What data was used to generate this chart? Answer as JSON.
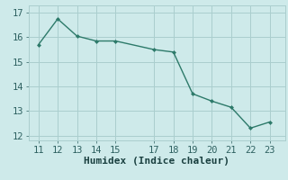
{
  "x": [
    11,
    12,
    13,
    14,
    15,
    17,
    18,
    19,
    20,
    21,
    22,
    23
  ],
  "y": [
    15.7,
    16.75,
    16.05,
    15.85,
    15.85,
    15.5,
    15.4,
    13.7,
    13.4,
    13.15,
    12.3,
    12.55
  ],
  "line_color": "#2d7a6a",
  "marker": "D",
  "marker_size": 2.5,
  "bg_color": "#ceeaea",
  "grid_color": "#aacece",
  "xlabel": "Humidex (Indice chaleur)",
  "xlabel_fontsize": 8,
  "tick_fontsize": 7.5,
  "ylim": [
    11.8,
    17.3
  ],
  "xlim": [
    10.5,
    23.8
  ],
  "yticks": [
    12,
    13,
    14,
    15,
    16,
    17
  ],
  "xticks": [
    11,
    12,
    13,
    14,
    15,
    17,
    18,
    19,
    20,
    21,
    22,
    23
  ],
  "tick_color": "#2d6060",
  "label_color": "#1a4040"
}
